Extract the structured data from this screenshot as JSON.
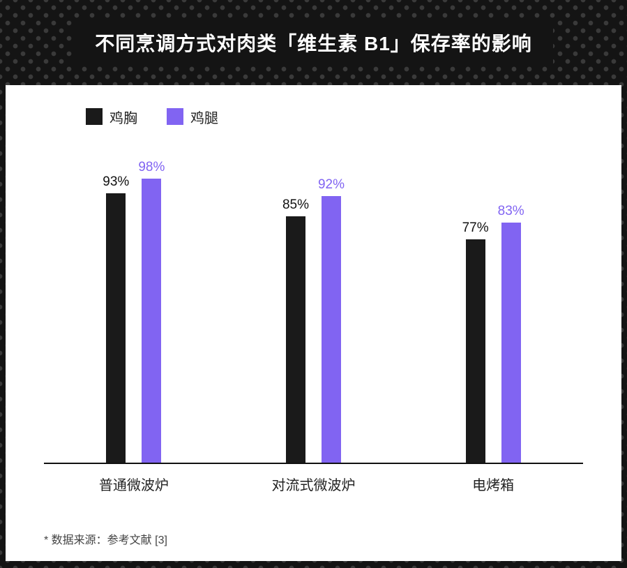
{
  "header": {
    "title": "不同烹调方式对肉类「维生素 B1」保存率的影响"
  },
  "chart_data": {
    "type": "bar",
    "title": "不同烹调方式对肉类「维生素 B1」保存率的影响",
    "categories": [
      "普通微波炉",
      "对流式微波炉",
      "电烤箱"
    ],
    "series": [
      {
        "name": "鸡胸",
        "color": "#1a1a1a",
        "values": [
          93,
          85,
          77
        ]
      },
      {
        "name": "鸡腿",
        "color": "#8164f2",
        "values": [
          98,
          92,
          83
        ]
      }
    ],
    "value_suffix": "%",
    "xlabel": "",
    "ylabel": "",
    "ylim": [
      0,
      100
    ],
    "grid": false,
    "legend_position": "top-left"
  },
  "footnote": "* 数据来源：参考文献 [3]",
  "colors": {
    "header_bg": "#141414",
    "header_dot": "#3a3a3a",
    "card_bg": "#ffffff",
    "axis": "#111111",
    "accent_purple": "#8164f2",
    "bar_black": "#1a1a1a"
  }
}
